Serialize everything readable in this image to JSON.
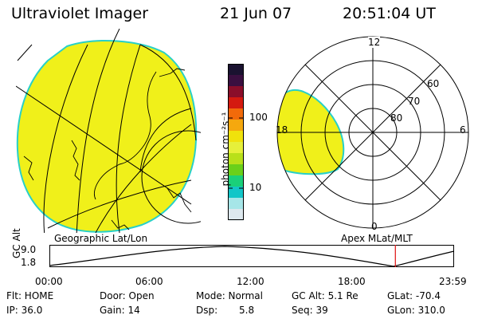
{
  "header": {
    "instrument": "Ultraviolet Imager",
    "date": "21 Jun 07",
    "time": "20:51:04 UT"
  },
  "colorbar": {
    "unit_label": "photon cm⁻²s⁻¹",
    "ticks": [
      "100",
      "10"
    ],
    "colors": [
      "#1a1230",
      "#3a0f40",
      "#8a0e2a",
      "#d41a10",
      "#f26a0a",
      "#f5a80e",
      "#f0e20c",
      "#e6f03a",
      "#b8e01a",
      "#6ad01a",
      "#1ad07a",
      "#12c6c8",
      "#a6e6e8",
      "#dde8ee"
    ]
  },
  "geo_panel": {
    "label": "Geographic Lat/Lon",
    "fill_color": "#f0f01a",
    "edge_color": "#28d0c8"
  },
  "polar_panel": {
    "label": "Apex MLat/MLT",
    "mlt_labels": {
      "top": "12",
      "left": "18",
      "right": "6",
      "bottom": "0"
    },
    "lat_labels": [
      "60",
      "70",
      "80"
    ]
  },
  "timeline": {
    "ylabel": "GC Alt",
    "y_ticks": [
      "9.0",
      "1.8"
    ],
    "x_ticks": [
      "00:00",
      "06:00",
      "12:00",
      "18:00",
      "23:59"
    ],
    "current_time_fraction": 0.855,
    "marker_color": "#e02020"
  },
  "status": {
    "flt": "Flt: HOME",
    "ip": "IP: 36.0",
    "door": "Door: Open",
    "gain": "Gain: 14",
    "mode": "Mode: Normal",
    "dsp_label": "Dsp:",
    "dsp_value": "5.8",
    "gc_alt": "GC Alt: 5.1 Re",
    "seq": "Seq: 39",
    "glat": "GLat: -70.4",
    "glon": "GLon: 310.0"
  }
}
